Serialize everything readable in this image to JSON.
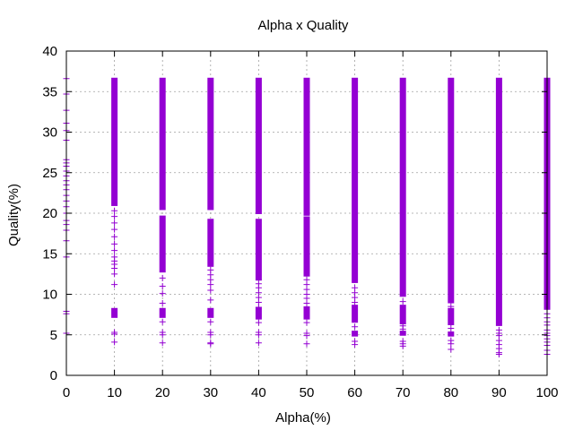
{
  "chart_data": {
    "type": "scatter",
    "title": "Alpha x Quality",
    "xlabel": "Alpha(%)",
    "ylabel": "Quality(%)",
    "xlim": [
      0,
      100
    ],
    "ylim": [
      0,
      40
    ],
    "xticks": [
      0,
      10,
      20,
      30,
      40,
      50,
      60,
      70,
      80,
      90,
      100
    ],
    "yticks": [
      0,
      5,
      10,
      15,
      20,
      25,
      30,
      35,
      40
    ],
    "grid": true,
    "marker": "+",
    "color": "#9400d3",
    "series": [
      {
        "solid_bands": [
          {
            "x": 10,
            "ranges": [
              [
                21,
                36.6
              ],
              [
                7.2,
                8.2
              ]
            ],
            "scattered_y": [
              4.1,
              5.1,
              5.3,
              11.2,
              12.5,
              13.2,
              13.7,
              14.1,
              14.6,
              15.4,
              16.2,
              17.1,
              18.0,
              18.8,
              19.6,
              20.3
            ]
          },
          {
            "x": 20,
            "ranges": [
              [
                20.5,
                36.6
              ],
              [
                12.8,
                19.6
              ],
              [
                7.2,
                8.2
              ]
            ],
            "scattered_y": [
              4.0,
              5.0,
              5.3,
              6.6,
              8.9,
              10.1,
              11.0,
              12.0
            ]
          },
          {
            "x": 30,
            "ranges": [
              [
                20.5,
                36.6
              ],
              [
                13.5,
                19.2
              ],
              [
                7.2,
                8.2
              ]
            ],
            "scattered_y": [
              3.9,
              4.0,
              5.0,
              5.3,
              6.6,
              9.3,
              10.5,
              11.2,
              11.8,
              12.4,
              13.0
            ]
          },
          {
            "x": 40,
            "ranges": [
              [
                20.0,
                36.6
              ],
              [
                11.8,
                19.2
              ],
              [
                7.0,
                8.3
              ]
            ],
            "scattered_y": [
              4.0,
              5.0,
              5.3,
              6.5,
              8.4,
              9.0,
              9.6,
              10.2,
              10.8,
              11.3
            ]
          },
          {
            "x": 50,
            "ranges": [
              [
                19.8,
                36.6
              ],
              [
                12.3,
                19.5
              ],
              [
                7.0,
                8.4
              ]
            ],
            "scattered_y": [
              3.9,
              4.9,
              5.2,
              6.5,
              8.9,
              9.5,
              10.0,
              10.6,
              11.2,
              11.8
            ]
          },
          {
            "x": 60,
            "ranges": [
              [
                11.5,
                36.6
              ],
              [
                6.6,
                8.6
              ],
              [
                4.9,
                5.4
              ]
            ],
            "scattered_y": [
              3.8,
              4.2,
              6.0,
              9.0,
              9.6,
              10.2,
              10.8
            ]
          },
          {
            "x": 70,
            "ranges": [
              [
                9.8,
                36.6
              ],
              [
                6.4,
                8.6
              ],
              [
                5.0,
                5.4
              ]
            ],
            "scattered_y": [
              3.6,
              3.9,
              4.2,
              5.7,
              6.1,
              9.1
            ]
          },
          {
            "x": 80,
            "ranges": [
              [
                9.0,
                36.6
              ],
              [
                6.3,
                8.2
              ],
              [
                4.9,
                5.3
              ]
            ],
            "scattered_y": [
              3.2,
              3.9,
              4.3,
              5.8,
              8.5
            ]
          },
          {
            "x": 90,
            "ranges": [
              [
                6.2,
                36.6
              ]
            ],
            "scattered_y": [
              2.6,
              2.8,
              3.3,
              3.8,
              4.3,
              4.9,
              5.2,
              5.6
            ]
          },
          {
            "x": 100,
            "ranges": [
              [
                8.2,
                36.6
              ]
            ],
            "scattered_y": [
              2.6,
              3.1,
              3.7,
              4.1,
              4.5,
              4.9,
              5.2,
              5.6,
              6.2,
              6.6,
              7.1,
              7.6
            ]
          }
        ],
        "scattered_points": [
          {
            "x": 0,
            "y": 36.6
          },
          {
            "x": 0,
            "y": 34.7
          },
          {
            "x": 0,
            "y": 32.7
          },
          {
            "x": 0,
            "y": 31.1
          },
          {
            "x": 0,
            "y": 30.2
          },
          {
            "x": 0,
            "y": 29.0
          },
          {
            "x": 0,
            "y": 26.6
          },
          {
            "x": 0,
            "y": 26.2
          },
          {
            "x": 0,
            "y": 25.8
          },
          {
            "x": 0,
            "y": 25.2
          },
          {
            "x": 0,
            "y": 24.6
          },
          {
            "x": 0,
            "y": 24.0
          },
          {
            "x": 0,
            "y": 23.5
          },
          {
            "x": 0,
            "y": 22.9
          },
          {
            "x": 0,
            "y": 22.2
          },
          {
            "x": 0,
            "y": 21.5
          },
          {
            "x": 0,
            "y": 20.8
          },
          {
            "x": 0,
            "y": 20.0
          },
          {
            "x": 0,
            "y": 19.1
          },
          {
            "x": 0,
            "y": 18.6
          },
          {
            "x": 0,
            "y": 17.9
          },
          {
            "x": 0,
            "y": 16.6
          },
          {
            "x": 0,
            "y": 14.6
          },
          {
            "x": 0,
            "y": 7.9
          },
          {
            "x": 0,
            "y": 7.6
          },
          {
            "x": 0,
            "y": 5.2
          }
        ]
      }
    ]
  }
}
